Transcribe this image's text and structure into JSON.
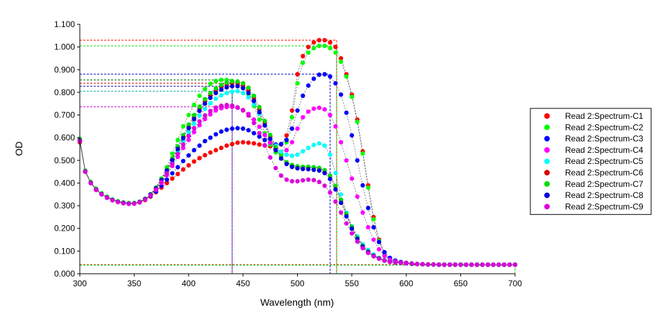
{
  "chart_data": {
    "type": "scatter",
    "title": "",
    "xlabel": "Wavelength (nm)",
    "ylabel": "OD",
    "xlim": [
      300,
      700
    ],
    "ylim": [
      0,
      1.1
    ],
    "x_ticks": [
      "300",
      "350",
      "400",
      "450",
      "500",
      "550",
      "600",
      "650",
      "700"
    ],
    "y_ticks": [
      "0.000",
      "0.100",
      "0.200",
      "0.300",
      "0.400",
      "0.500",
      "0.600",
      "0.700",
      "0.800",
      "0.900",
      "1.000",
      "1.100"
    ],
    "grid": false,
    "legend_position": "right",
    "x": [
      300,
      305,
      310,
      315,
      320,
      325,
      330,
      335,
      340,
      345,
      350,
      355,
      360,
      365,
      370,
      375,
      380,
      385,
      390,
      395,
      400,
      405,
      410,
      415,
      420,
      425,
      430,
      435,
      440,
      445,
      450,
      455,
      460,
      465,
      470,
      475,
      480,
      485,
      490,
      495,
      500,
      505,
      510,
      515,
      520,
      525,
      530,
      535,
      540,
      545,
      550,
      555,
      560,
      565,
      570,
      575,
      580,
      585,
      590,
      595,
      600,
      605,
      610,
      615,
      620,
      625,
      630,
      635,
      640,
      645,
      650,
      655,
      660,
      665,
      670,
      675,
      680,
      685,
      690,
      695,
      700
    ],
    "series": [
      {
        "name": "Read 2:Spectrum-C1",
        "color": "#ff0000",
        "values": [
          0.58,
          0.45,
          0.4,
          0.37,
          0.35,
          0.335,
          0.325,
          0.318,
          0.313,
          0.31,
          0.31,
          0.315,
          0.325,
          0.34,
          0.36,
          0.38,
          0.4,
          0.42,
          0.44,
          0.46,
          0.478,
          0.495,
          0.51,
          0.523,
          0.535,
          0.545,
          0.555,
          0.565,
          0.572,
          0.578,
          0.58,
          0.578,
          0.575,
          0.57,
          0.565,
          0.562,
          0.562,
          0.57,
          0.61,
          0.72,
          0.88,
          0.96,
          1.0,
          1.02,
          1.03,
          1.03,
          1.02,
          1.0,
          0.95,
          0.88,
          0.79,
          0.68,
          0.54,
          0.39,
          0.25,
          0.15,
          0.09,
          0.065,
          0.055,
          0.05,
          0.048,
          0.045,
          0.043,
          0.042,
          0.041,
          0.041,
          0.04,
          0.04,
          0.04,
          0.04,
          0.04,
          0.04,
          0.04,
          0.04,
          0.04,
          0.04,
          0.04,
          0.04,
          0.04,
          0.04,
          0.04
        ]
      },
      {
        "name": "Read 2:Spectrum-C2",
        "color": "#00ff00",
        "values": [
          0.595,
          0.455,
          0.405,
          0.375,
          0.355,
          0.34,
          0.328,
          0.32,
          0.315,
          0.312,
          0.312,
          0.318,
          0.33,
          0.35,
          0.38,
          0.42,
          0.47,
          0.53,
          0.59,
          0.65,
          0.7,
          0.745,
          0.785,
          0.815,
          0.838,
          0.85,
          0.855,
          0.855,
          0.85,
          0.84,
          0.82,
          0.79,
          0.74,
          0.68,
          0.62,
          0.57,
          0.535,
          0.53,
          0.58,
          0.69,
          0.84,
          0.93,
          0.975,
          0.995,
          1.005,
          1.005,
          0.995,
          0.975,
          0.935,
          0.87,
          0.78,
          0.67,
          0.53,
          0.38,
          0.24,
          0.145,
          0.088,
          0.065,
          0.055,
          0.05,
          0.048,
          0.045,
          0.043,
          0.042,
          0.041,
          0.041,
          0.04,
          0.04,
          0.04,
          0.04,
          0.04,
          0.04,
          0.04,
          0.04,
          0.04,
          0.04,
          0.04,
          0.04,
          0.04,
          0.04,
          0.04
        ]
      },
      {
        "name": "Read 2:Spectrum-C3",
        "color": "#0000ff",
        "values": [
          0.585,
          0.45,
          0.4,
          0.37,
          0.35,
          0.336,
          0.325,
          0.318,
          0.313,
          0.31,
          0.311,
          0.316,
          0.327,
          0.343,
          0.363,
          0.388,
          0.415,
          0.443,
          0.47,
          0.497,
          0.522,
          0.545,
          0.565,
          0.585,
          0.6,
          0.615,
          0.627,
          0.635,
          0.64,
          0.642,
          0.64,
          0.633,
          0.62,
          0.605,
          0.59,
          0.578,
          0.57,
          0.572,
          0.59,
          0.64,
          0.72,
          0.785,
          0.83,
          0.86,
          0.878,
          0.88,
          0.87,
          0.84,
          0.79,
          0.71,
          0.61,
          0.5,
          0.39,
          0.29,
          0.205,
          0.14,
          0.095,
          0.07,
          0.058,
          0.052,
          0.048,
          0.045,
          0.043,
          0.042,
          0.041,
          0.041,
          0.04,
          0.04,
          0.04,
          0.04,
          0.04,
          0.04,
          0.04,
          0.04,
          0.04,
          0.04,
          0.04,
          0.04,
          0.04,
          0.04,
          0.04
        ]
      },
      {
        "name": "Read 2:Spectrum-C4",
        "color": "#ff00ff",
        "values": [
          0.585,
          0.45,
          0.4,
          0.37,
          0.35,
          0.336,
          0.325,
          0.317,
          0.312,
          0.309,
          0.31,
          0.315,
          0.327,
          0.345,
          0.37,
          0.4,
          0.435,
          0.475,
          0.515,
          0.555,
          0.59,
          0.625,
          0.655,
          0.682,
          0.703,
          0.72,
          0.73,
          0.735,
          0.736,
          0.732,
          0.722,
          0.705,
          0.68,
          0.648,
          0.612,
          0.578,
          0.552,
          0.538,
          0.545,
          0.58,
          0.64,
          0.69,
          0.715,
          0.728,
          0.732,
          0.725,
          0.7,
          0.65,
          0.58,
          0.5,
          0.42,
          0.34,
          0.27,
          0.205,
          0.15,
          0.108,
          0.078,
          0.062,
          0.054,
          0.05,
          0.048,
          0.045,
          0.043,
          0.042,
          0.041,
          0.041,
          0.04,
          0.04,
          0.04,
          0.04,
          0.04,
          0.04,
          0.04,
          0.04,
          0.04,
          0.04,
          0.04,
          0.04,
          0.04,
          0.04,
          0.04
        ]
      },
      {
        "name": "Read 2:Spectrum-C5",
        "color": "#00ffff",
        "values": [
          0.59,
          0.452,
          0.402,
          0.372,
          0.352,
          0.337,
          0.326,
          0.318,
          0.313,
          0.31,
          0.311,
          0.317,
          0.329,
          0.348,
          0.375,
          0.41,
          0.45,
          0.495,
          0.54,
          0.585,
          0.625,
          0.662,
          0.697,
          0.727,
          0.752,
          0.772,
          0.787,
          0.797,
          0.803,
          0.805,
          0.797,
          0.778,
          0.747,
          0.705,
          0.655,
          0.605,
          0.565,
          0.538,
          0.525,
          0.52,
          0.525,
          0.54,
          0.555,
          0.568,
          0.575,
          0.565,
          0.525,
          0.445,
          0.35,
          0.27,
          0.21,
          0.165,
          0.13,
          0.105,
          0.085,
          0.07,
          0.06,
          0.054,
          0.05,
          0.048,
          0.046,
          0.044,
          0.043,
          0.042,
          0.041,
          0.041,
          0.04,
          0.04,
          0.04,
          0.04,
          0.04,
          0.04,
          0.04,
          0.04,
          0.04,
          0.04,
          0.04,
          0.04,
          0.04,
          0.04,
          0.04
        ]
      },
      {
        "name": "Read 2:Spectrum-C6",
        "color": "#dd0000",
        "values": [
          0.59,
          0.452,
          0.402,
          0.372,
          0.352,
          0.337,
          0.326,
          0.318,
          0.313,
          0.31,
          0.311,
          0.317,
          0.33,
          0.35,
          0.378,
          0.415,
          0.458,
          0.505,
          0.555,
          0.605,
          0.65,
          0.69,
          0.727,
          0.76,
          0.787,
          0.808,
          0.823,
          0.833,
          0.838,
          0.838,
          0.83,
          0.81,
          0.775,
          0.725,
          0.665,
          0.605,
          0.553,
          0.515,
          0.49,
          0.478,
          0.472,
          0.47,
          0.47,
          0.468,
          0.465,
          0.455,
          0.43,
          0.385,
          0.325,
          0.262,
          0.205,
          0.158,
          0.122,
          0.097,
          0.08,
          0.068,
          0.059,
          0.053,
          0.05,
          0.048,
          0.046,
          0.044,
          0.043,
          0.042,
          0.041,
          0.041,
          0.04,
          0.04,
          0.04,
          0.04,
          0.04,
          0.04,
          0.04,
          0.04,
          0.04,
          0.04,
          0.04,
          0.04,
          0.04,
          0.04,
          0.04
        ]
      },
      {
        "name": "Read 2:Spectrum-C7",
        "color": "#00dd00",
        "values": [
          0.59,
          0.452,
          0.402,
          0.372,
          0.352,
          0.337,
          0.326,
          0.318,
          0.313,
          0.31,
          0.311,
          0.317,
          0.33,
          0.351,
          0.38,
          0.418,
          0.462,
          0.51,
          0.562,
          0.612,
          0.658,
          0.7,
          0.737,
          0.77,
          0.797,
          0.818,
          0.833,
          0.843,
          0.848,
          0.848,
          0.84,
          0.82,
          0.785,
          0.735,
          0.674,
          0.612,
          0.558,
          0.518,
          0.492,
          0.48,
          0.474,
          0.472,
          0.472,
          0.47,
          0.467,
          0.457,
          0.432,
          0.387,
          0.327,
          0.263,
          0.206,
          0.159,
          0.123,
          0.098,
          0.08,
          0.068,
          0.059,
          0.053,
          0.05,
          0.048,
          0.046,
          0.044,
          0.043,
          0.042,
          0.041,
          0.041,
          0.04,
          0.04,
          0.04,
          0.04,
          0.04,
          0.04,
          0.04,
          0.04,
          0.04,
          0.04,
          0.04,
          0.04,
          0.04,
          0.04,
          0.04
        ]
      },
      {
        "name": "Read 2:Spectrum-C8",
        "color": "#0000dd",
        "values": [
          0.588,
          0.451,
          0.401,
          0.371,
          0.351,
          0.336,
          0.325,
          0.317,
          0.312,
          0.309,
          0.31,
          0.316,
          0.329,
          0.349,
          0.377,
          0.413,
          0.455,
          0.501,
          0.55,
          0.598,
          0.642,
          0.682,
          0.718,
          0.75,
          0.776,
          0.797,
          0.812,
          0.822,
          0.827,
          0.827,
          0.818,
          0.797,
          0.762,
          0.713,
          0.654,
          0.595,
          0.545,
          0.508,
          0.484,
          0.471,
          0.465,
          0.462,
          0.461,
          0.458,
          0.455,
          0.444,
          0.418,
          0.372,
          0.313,
          0.253,
          0.199,
          0.154,
          0.12,
          0.096,
          0.079,
          0.067,
          0.058,
          0.053,
          0.05,
          0.048,
          0.046,
          0.044,
          0.043,
          0.042,
          0.041,
          0.041,
          0.04,
          0.04,
          0.04,
          0.04,
          0.04,
          0.04,
          0.04,
          0.04,
          0.04,
          0.04,
          0.04,
          0.04,
          0.04,
          0.04,
          0.04
        ]
      },
      {
        "name": "Read 2:Spectrum-C9",
        "color": "#dd00dd",
        "values": [
          0.586,
          0.45,
          0.4,
          0.37,
          0.35,
          0.335,
          0.324,
          0.316,
          0.311,
          0.308,
          0.309,
          0.315,
          0.327,
          0.346,
          0.372,
          0.405,
          0.443,
          0.485,
          0.528,
          0.57,
          0.608,
          0.642,
          0.672,
          0.698,
          0.718,
          0.733,
          0.741,
          0.744,
          0.742,
          0.734,
          0.72,
          0.698,
          0.665,
          0.62,
          0.567,
          0.513,
          0.466,
          0.433,
          0.415,
          0.408,
          0.408,
          0.412,
          0.415,
          0.413,
          0.405,
          0.388,
          0.358,
          0.318,
          0.27,
          0.222,
          0.178,
          0.142,
          0.113,
          0.092,
          0.077,
          0.066,
          0.058,
          0.053,
          0.05,
          0.048,
          0.046,
          0.044,
          0.043,
          0.042,
          0.041,
          0.041,
          0.04,
          0.04,
          0.04,
          0.04,
          0.04,
          0.04,
          0.04,
          0.04,
          0.04,
          0.04,
          0.04,
          0.04,
          0.04,
          0.04,
          0.04
        ]
      }
    ],
    "reference_lines": [
      {
        "color": "#ff0000",
        "x": 536,
        "y": 1.03
      },
      {
        "color": "#00dd00",
        "x": 536,
        "y": 1.005
      },
      {
        "color": "#0000cc",
        "x": 530,
        "y": 0.88
      },
      {
        "color": "#006600",
        "x": 440,
        "y": 0.855
      },
      {
        "color": "#cc0000",
        "x": 440,
        "y": 0.84
      },
      {
        "color": "#000099",
        "x": 440,
        "y": 0.827
      },
      {
        "color": "#00aaaa",
        "x": 440,
        "y": 0.805
      },
      {
        "color": "#cc00cc",
        "x": 440,
        "y": 0.736
      },
      {
        "color": "#ff0000",
        "x": 700,
        "y": 0.04
      },
      {
        "color": "#00cc00",
        "x": 700,
        "y": 0.038
      }
    ]
  }
}
